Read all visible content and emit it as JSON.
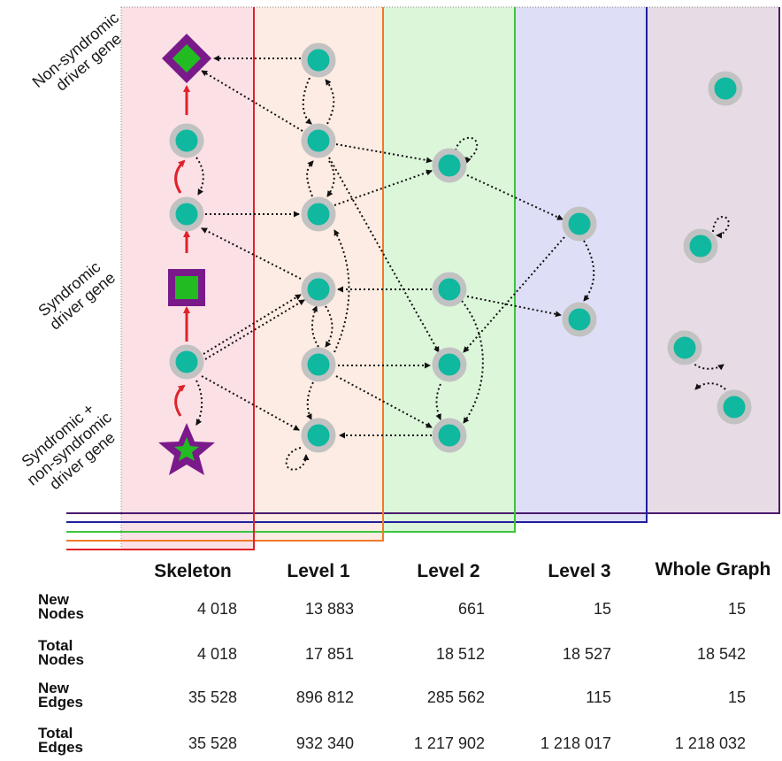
{
  "side_labels": [
    "Non-syndromic driver gene",
    "Syndromic driver gene",
    "Syndromic + non-syndromic driver gene"
  ],
  "side_label_lines": [
    [
      "Non-syndromic",
      "driver gene"
    ],
    [
      "Syndromic",
      "driver gene"
    ],
    [
      "Syndromic +",
      "non-syndromic",
      "driver gene"
    ]
  ],
  "columns": [
    "Skeleton",
    "Level 1",
    "Level 2",
    "Level 3",
    "Whole Graph"
  ],
  "rows": [
    {
      "label": [
        "New",
        "Nodes"
      ],
      "values": [
        "4 018",
        "13 883",
        "661",
        "15",
        "15"
      ]
    },
    {
      "label": [
        "Total",
        "Nodes"
      ],
      "values": [
        "4 018",
        "17 851",
        "18 512",
        "18 527",
        "18 542"
      ]
    },
    {
      "label": [
        "New",
        "Edges"
      ],
      "values": [
        "35 528",
        "896 812",
        "285 562",
        "115",
        "15"
      ]
    },
    {
      "label": [
        "Total",
        "Edges"
      ],
      "values": [
        "35 528",
        "932 340",
        "1 217 902",
        "1 218 017",
        "1 218 032"
      ]
    }
  ],
  "colors": {
    "skeleton": "#e0222a",
    "level1": "#f07a2a",
    "level2": "#3cc43c",
    "level3": "#1f1f9e",
    "whole_graph": "#4a1a6e",
    "node_fill": "#10b8a0",
    "node_ring": "#c2c2c2",
    "driver_fill": "#22bb22",
    "driver_border": "#7a1a8a",
    "edge_red": "#e0222a"
  },
  "icons": {
    "non_syndromic": "diamond-icon",
    "syndromic": "square-icon",
    "both": "star-icon",
    "gene": "circle-node-icon"
  }
}
